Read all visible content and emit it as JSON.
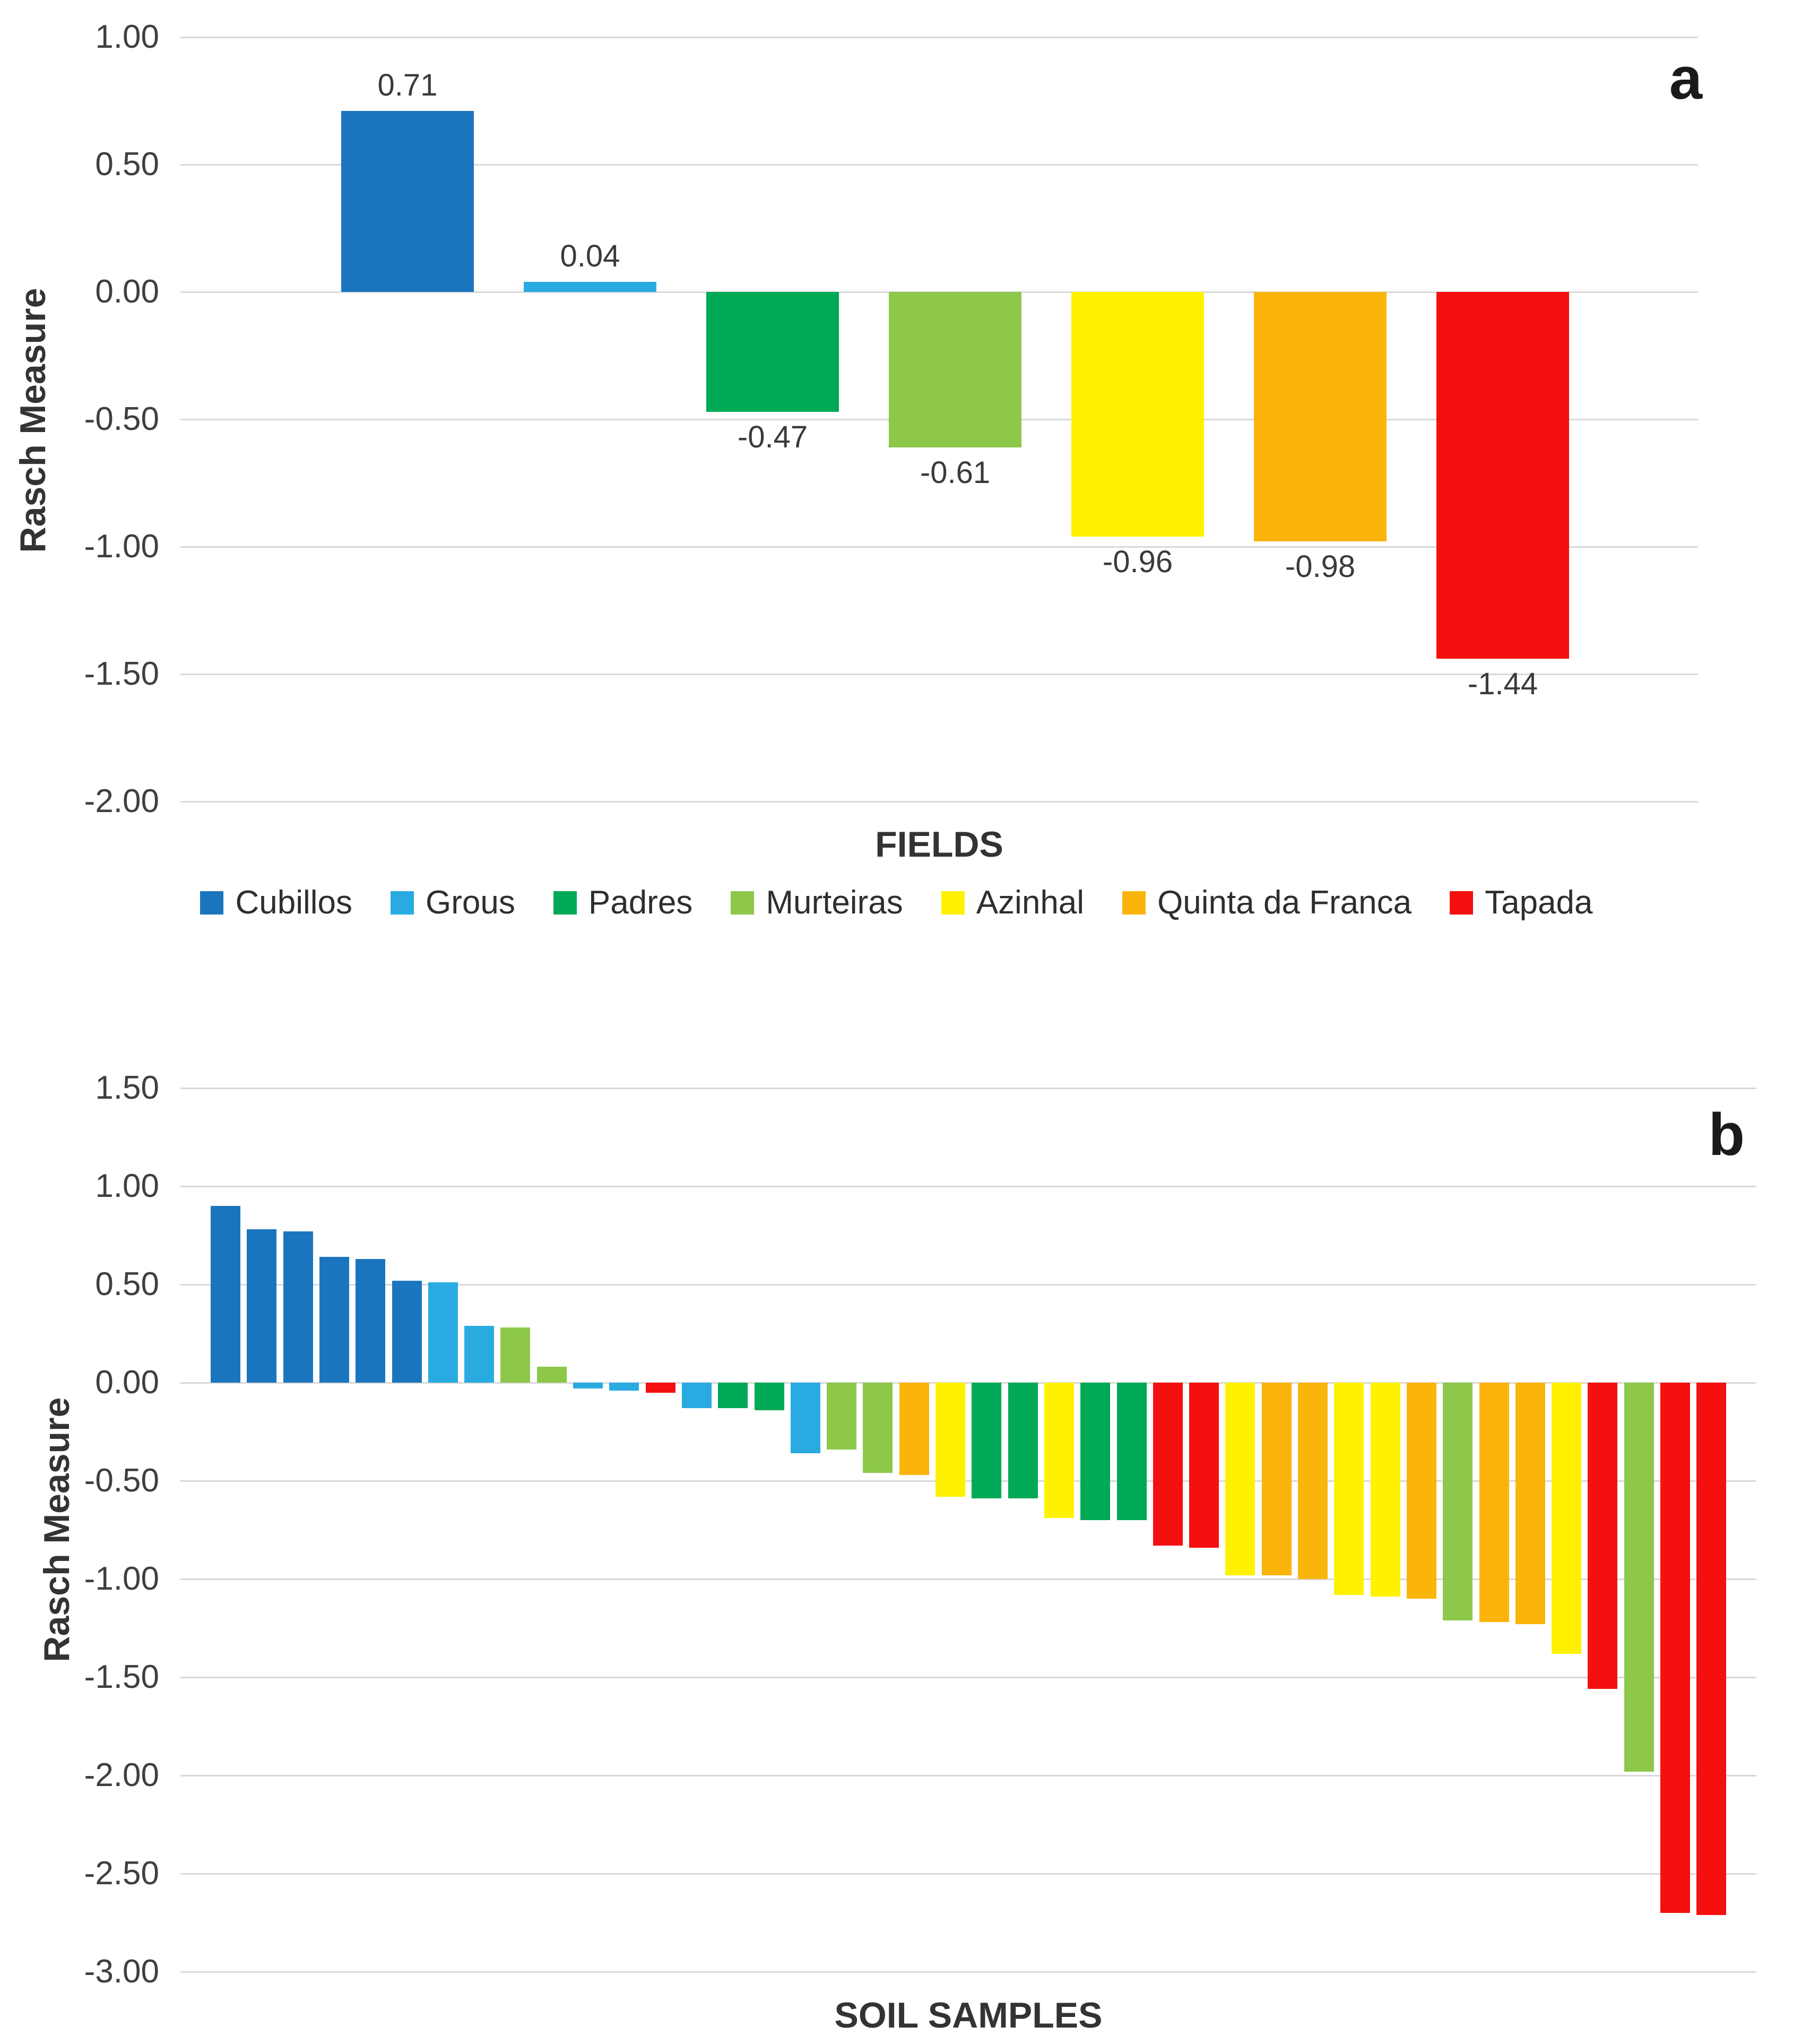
{
  "figure": {
    "background": "#ffffff",
    "grid_color": "#d9d9d9",
    "text_color": "#3f3f3f"
  },
  "colors": {
    "Cubillos": "#1b75be",
    "Grous": "#29abe2",
    "Padres": "#00a955",
    "Murteiras": "#8dc84b",
    "Azinhal": "#fef200",
    "Quinta da Franca": "#fbb40a",
    "Tapada": "#f4100e"
  },
  "legend": {
    "position": "between-charts-centered",
    "items": [
      {
        "label": "Cubillos",
        "color": "#1b75be"
      },
      {
        "label": "Grous",
        "color": "#29abe2"
      },
      {
        "label": "Padres",
        "color": "#00a955"
      },
      {
        "label": "Murteiras",
        "color": "#8dc84b"
      },
      {
        "label": "Azinhal",
        "color": "#fef200"
      },
      {
        "label": "Quinta da Franca",
        "color": "#fbb40a"
      },
      {
        "label": "Tapada",
        "color": "#f4100e"
      }
    ]
  },
  "chart_data": [
    {
      "type": "bar",
      "panel_label": "a",
      "xlabel": "FIELDS",
      "ylabel": "Rasch Measure",
      "ylim": [
        -2.0,
        1.0
      ],
      "grid": true,
      "y_tick_labels": [
        "1.00",
        "0.50",
        "0.00",
        "-0.50",
        "-1.00",
        "-1.50",
        "-2.00"
      ],
      "y_tick_values": [
        1.0,
        0.5,
        0.0,
        -0.5,
        -1.0,
        -1.5,
        -2.0
      ],
      "categories": [
        "Cubillos",
        "Grous",
        "Padres",
        "Murteiras",
        "Azinhal",
        "Quinta da Franca",
        "Tapada"
      ],
      "values": [
        0.71,
        0.04,
        -0.47,
        -0.61,
        -0.96,
        -0.98,
        -1.44
      ],
      "data_labels": [
        "0.71",
        "0.04",
        "-0.47",
        "-0.61",
        "-0.96",
        "-0.98",
        "-1.44"
      ]
    },
    {
      "type": "bar",
      "panel_label": "b",
      "xlabel": "SOIL SAMPLES",
      "ylabel": "Rasch Measure",
      "ylim": [
        -3.0,
        1.5
      ],
      "grid": true,
      "y_tick_labels": [
        "1.50",
        "1.00",
        "0.50",
        "0.00",
        "-0.50",
        "-1.00",
        "-1.50",
        "-2.00",
        "-2.50",
        "-3.00"
      ],
      "y_tick_values": [
        1.5,
        1.0,
        0.5,
        0.0,
        -0.5,
        -1.0,
        -1.5,
        -2.0,
        -2.5,
        -3.0
      ],
      "data_labels_shown": false,
      "fields": [
        "Cubillos",
        "Cubillos",
        "Cubillos",
        "Cubillos",
        "Cubillos",
        "Cubillos",
        "Grous",
        "Grous",
        "Murteiras",
        "Murteiras",
        "Grous",
        "Grous",
        "Tapada",
        "Grous",
        "Padres",
        "Padres",
        "Grous",
        "Murteiras",
        "Murteiras",
        "Quinta da Franca",
        "Azinhal",
        "Padres",
        "Padres",
        "Azinhal",
        "Padres",
        "Padres",
        "Tapada",
        "Tapada",
        "Azinhal",
        "Quinta da Franca",
        "Quinta da Franca",
        "Azinhal",
        "Azinhal",
        "Quinta da Franca",
        "Murteiras",
        "Quinta da Franca",
        "Quinta da Franca",
        "Azinhal",
        "Tapada",
        "Murteiras",
        "Tapada",
        "Tapada"
      ],
      "values": [
        0.9,
        0.78,
        0.77,
        0.64,
        0.63,
        0.52,
        0.51,
        0.29,
        0.28,
        0.08,
        -0.03,
        -0.04,
        -0.05,
        -0.13,
        -0.13,
        -0.14,
        -0.36,
        -0.34,
        -0.46,
        -0.47,
        -0.58,
        -0.59,
        -0.59,
        -0.69,
        -0.7,
        -0.7,
        -0.83,
        -0.84,
        -0.98,
        -0.98,
        -1.0,
        -1.08,
        -1.09,
        -1.1,
        -1.21,
        -1.22,
        -1.23,
        -1.38,
        -1.56,
        -1.98,
        -2.7,
        -2.71
      ]
    }
  ]
}
